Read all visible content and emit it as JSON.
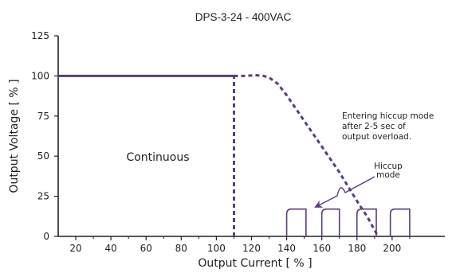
{
  "chart_data": {
    "type": "line",
    "title": "DPS-3-24 - 400VAC",
    "xlabel": "Output Current [ % ]",
    "ylabel": "Output Voltage  [ % ]",
    "xlim": [
      10,
      230
    ],
    "ylim": [
      0,
      125
    ],
    "x_ticks": [
      20,
      40,
      60,
      80,
      100,
      120,
      140,
      160,
      180,
      200
    ],
    "y_ticks": [
      0,
      25,
      50,
      75,
      100,
      125
    ],
    "grid": false,
    "series": [
      {
        "style": "solid",
        "x": [
          10,
          110
        ],
        "y": [
          100,
          100
        ]
      },
      {
        "style": "dashed",
        "x": [
          110,
          110
        ],
        "y": [
          0,
          100
        ]
      },
      {
        "style": "dashed",
        "x": [
          110,
          117,
          122,
          127,
          130,
          135,
          140,
          150,
          160,
          170,
          180,
          186,
          192
        ],
        "y": [
          100,
          100,
          100.5,
          100,
          99,
          95,
          88,
          72,
          56,
          40,
          22,
          12,
          0
        ]
      }
    ],
    "hiccup_pulses": [
      {
        "x_start": 140,
        "x_end": 151,
        "y_top": 17
      },
      {
        "x_start": 160,
        "x_end": 170,
        "y_top": 17
      },
      {
        "x_start": 180,
        "x_end": 191,
        "y_top": 17
      },
      {
        "x_start": 199,
        "x_end": 210,
        "y_top": 17
      }
    ],
    "annotations": {
      "continuous": "Continuous",
      "hiccup_note": [
        "Entering hiccup mode",
        "after 2-5 sec of",
        "output overload."
      ],
      "hiccup_label": [
        "Hiccup",
        "mode"
      ]
    },
    "colors": {
      "curve": "#5a3d7a",
      "axis": "#222222"
    }
  }
}
